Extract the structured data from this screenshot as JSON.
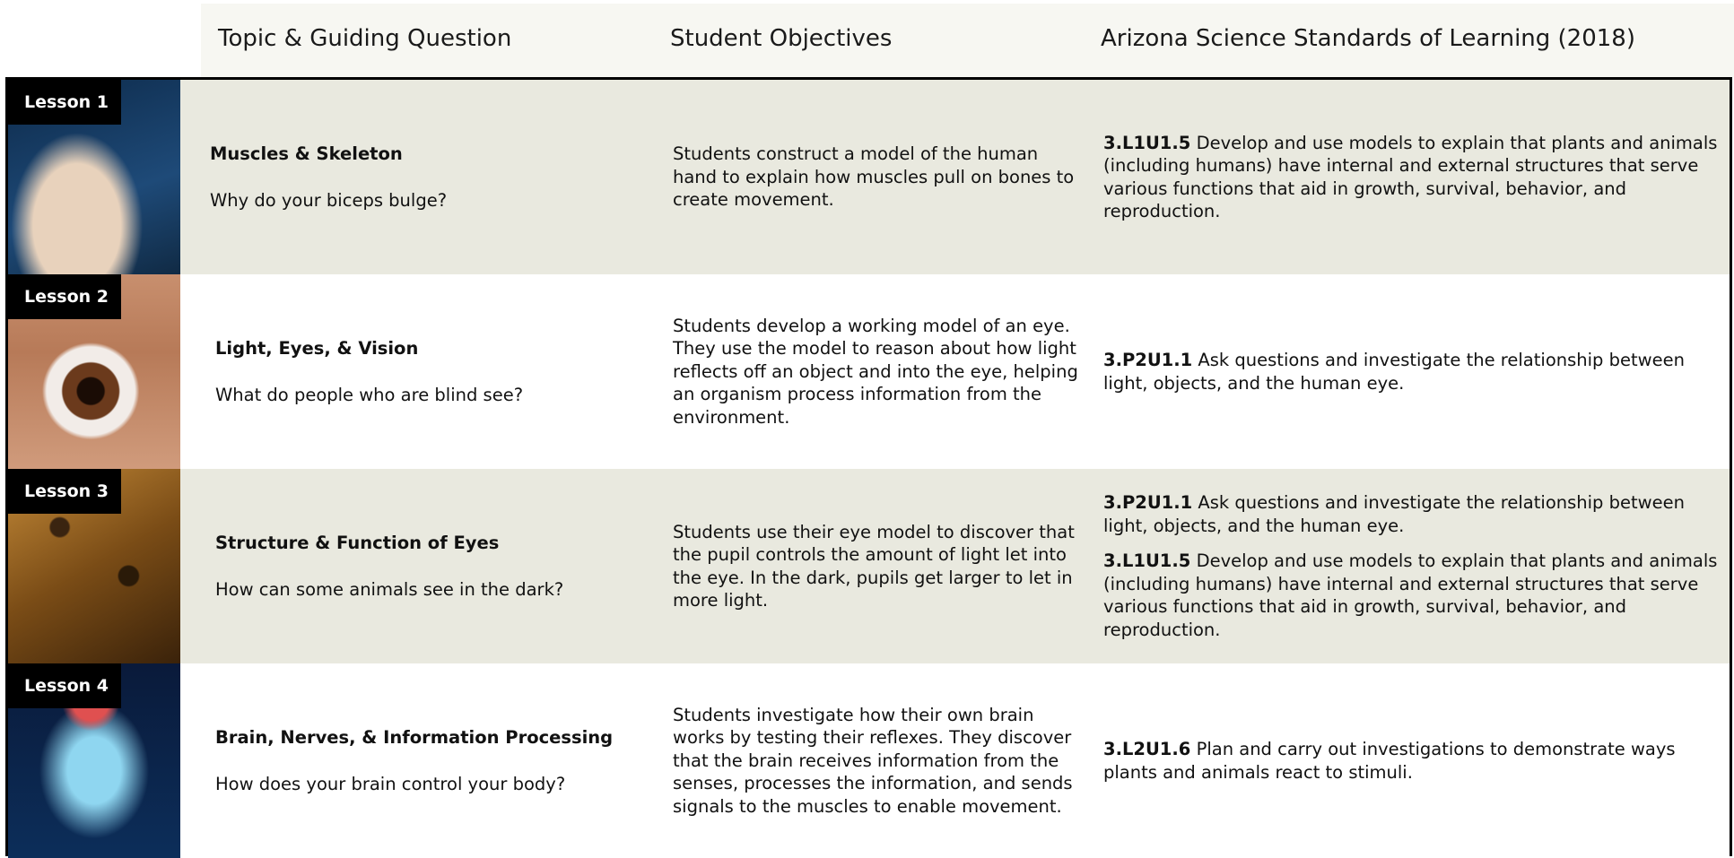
{
  "header": {
    "columns": [
      "Topic & Guiding Question",
      "Student Objectives",
      "Arizona Science Standards of Learning (2018)"
    ]
  },
  "rows": [
    {
      "lesson": "Lesson 1",
      "topic": "Muscles & Skeleton",
      "question": "Why do your biceps bulge?",
      "objective": "Students construct a model of the human hand to explain how muscles pull on bones to create movement.",
      "standards": [
        {
          "code": "3.L1U1.5",
          "text": "Develop and use models to explain that plants and animals (including humans) have internal and external structures that serve various functions that aid in growth, survival, behavior, and reproduction."
        }
      ]
    },
    {
      "lesson": "Lesson 2",
      "topic": "Light, Eyes, & Vision",
      "question": "What do people who are blind see?",
      "objective": "Students develop a working model of an eye. They use the model to reason about how light reflects off an object and into the eye, helping an organism process information from the environment.",
      "standards": [
        {
          "code": "3.P2U1.1",
          "text": "Ask questions and investigate the relationship between light, objects, and the human eye."
        }
      ]
    },
    {
      "lesson": "Lesson 3",
      "topic": "Structure & Function of Eyes",
      "question": "How can some animals see in the dark?",
      "objective": "Students use their eye model to discover that the pupil controls the amount of light let into the eye. In the dark, pupils get larger to let in more light.",
      "standards": [
        {
          "code": "3.P2U1.1",
          "text": "Ask questions and investigate the relationship between light, objects, and the human eye."
        },
        {
          "code": "3.L1U1.5",
          "text": "Develop and use models to explain that plants and animals (including humans) have internal and external structures that serve various functions that aid in growth, survival, behavior, and reproduction."
        }
      ]
    },
    {
      "lesson": "Lesson 4",
      "topic": "Brain, Nerves, & Information Processing",
      "question": "How does your brain control your body?",
      "objective": "Students investigate how their own brain works by testing their reflexes. They discover that the brain receives information from the senses, processes the information, and sends signals to the muscles to enable movement.",
      "standards": [
        {
          "code": "3.L2U1.6",
          "text": "Plan and carry out investigations to demonstrate ways plants and animals react to stimuli."
        }
      ]
    }
  ]
}
